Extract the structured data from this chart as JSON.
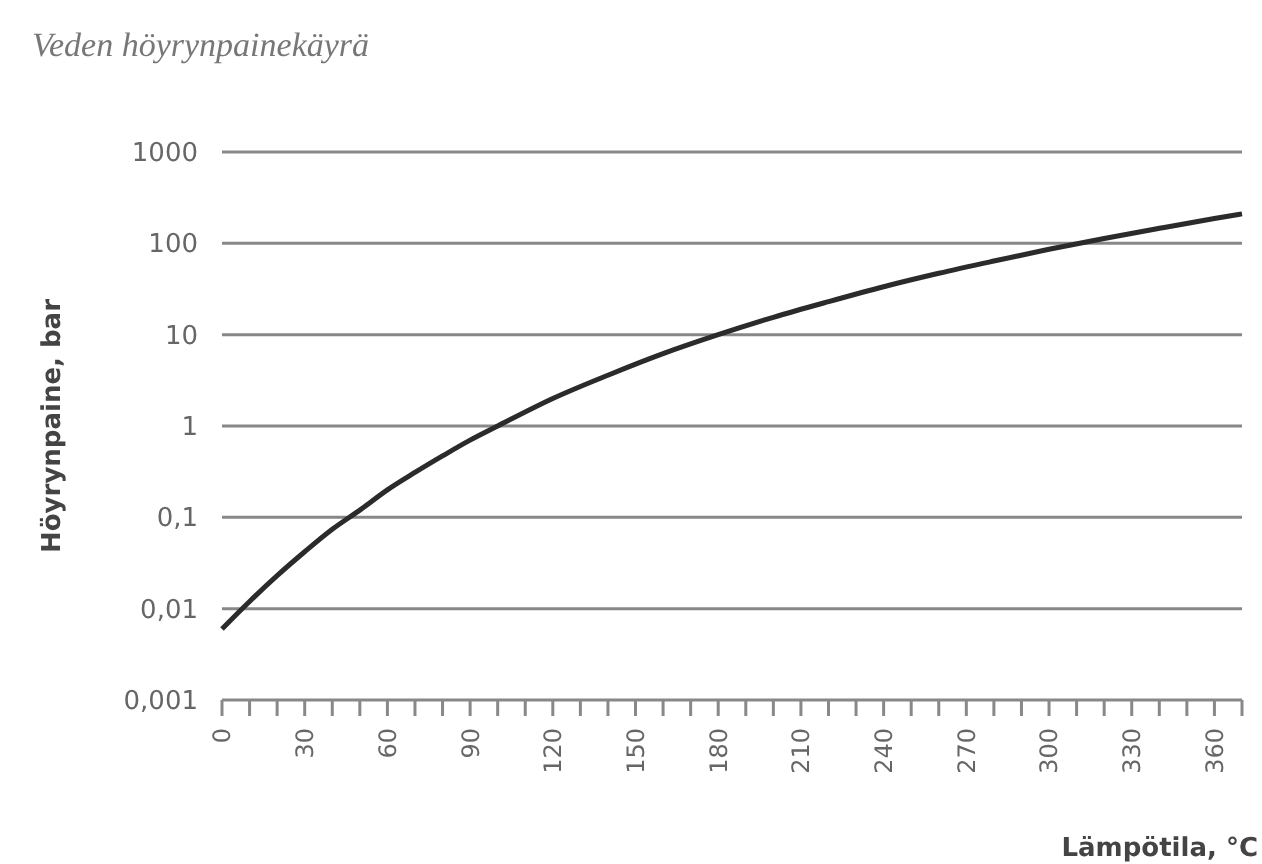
{
  "chart_data": {
    "type": "line",
    "title": "Veden höyrynpainekäyrä",
    "xlabel": "Lämpötila, °C",
    "ylabel": "Höyrynpaine, bar",
    "log": "y",
    "grid": "y",
    "marker": "none",
    "line_style": "solid",
    "xlim": [
      0,
      370
    ],
    "xticks": [
      0,
      {
        "value": 10,
        "label": null
      },
      {
        "value": 20,
        "label": null
      },
      30,
      {
        "value": 40,
        "label": null
      },
      {
        "value": 50,
        "label": null
      },
      60,
      {
        "value": 70,
        "label": null
      },
      {
        "value": 80,
        "label": null
      },
      90,
      {
        "value": 100,
        "label": null
      },
      {
        "value": 110,
        "label": null
      },
      120,
      {
        "value": 130,
        "label": null
      },
      {
        "value": 140,
        "label": null
      },
      150,
      {
        "value": 160,
        "label": null
      },
      {
        "value": 170,
        "label": null
      },
      180,
      {
        "value": 190,
        "label": null
      },
      {
        "value": 200,
        "label": null
      },
      210,
      {
        "value": 220,
        "label": null
      },
      {
        "value": 230,
        "label": null
      },
      240,
      {
        "value": 250,
        "label": null
      },
      {
        "value": 260,
        "label": null
      },
      270,
      {
        "value": 280,
        "label": null
      },
      {
        "value": 290,
        "label": null
      },
      300,
      {
        "value": 310,
        "label": null
      },
      {
        "value": 320,
        "label": null
      },
      330,
      {
        "value": 340,
        "label": null
      },
      {
        "value": 350,
        "label": null
      },
      360,
      {
        "value": 370,
        "label": null
      }
    ],
    "ylim": [
      0.001,
      1000
    ],
    "yticks": [
      {
        "value": 0.001,
        "label": "0,001"
      },
      {
        "value": 0.01,
        "label": "0,01"
      },
      {
        "value": 0.1,
        "label": "0,1"
      },
      1,
      10,
      100,
      1000
    ],
    "x": [
      0,
      10,
      20,
      30,
      40,
      50,
      60,
      70,
      80,
      90,
      100,
      120,
      140,
      160,
      180,
      200,
      220,
      240,
      260,
      280,
      300,
      320,
      340,
      360,
      370
    ],
    "series": [
      {
        "color": "#2b2b2b",
        "values": [
          0.006,
          0.012,
          0.023,
          0.042,
          0.074,
          0.12,
          0.2,
          0.31,
          0.47,
          0.7,
          1.0,
          2.0,
          3.6,
          6.2,
          10,
          15.5,
          23,
          33.5,
          47,
          64,
          86,
          113,
          146,
          187,
          210
        ]
      }
    ]
  }
}
